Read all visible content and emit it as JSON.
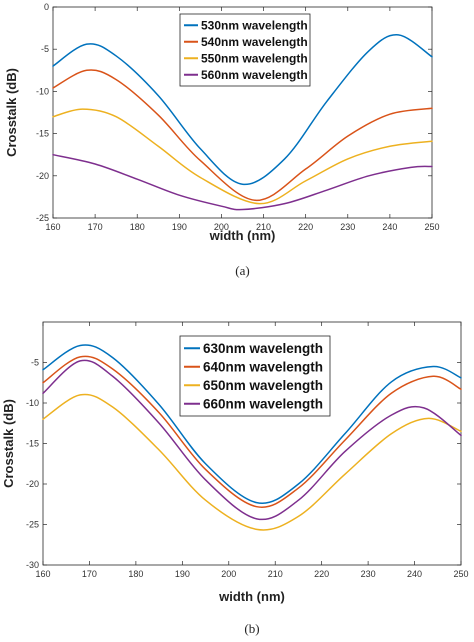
{
  "chart_data": [
    {
      "type": "line",
      "xlabel": "width (nm)",
      "ylabel": "Crosstalk (dB)",
      "xlim": [
        160,
        250
      ],
      "ylim": [
        -25,
        0
      ],
      "xticks": [
        160,
        170,
        180,
        190,
        200,
        210,
        220,
        230,
        240,
        250
      ],
      "yticks": [
        0,
        -5,
        -10,
        -15,
        -20,
        -25
      ],
      "grid": false,
      "legend": "top-center",
      "caption": "(a)",
      "series": [
        {
          "name": "530nm wavelength",
          "color": "#0072BD",
          "x": [
            160,
            168,
            175,
            185,
            195,
            205,
            215,
            225,
            235,
            242,
            250
          ],
          "y": [
            -7.0,
            -4.4,
            -5.8,
            -10.5,
            -16.8,
            -21.0,
            -18.0,
            -11.2,
            -5.2,
            -3.3,
            -5.9
          ]
        },
        {
          "name": "540nm wavelength",
          "color": "#D95319",
          "x": [
            160,
            168,
            175,
            185,
            195,
            208,
            220,
            230,
            240,
            250
          ],
          "y": [
            -9.6,
            -7.5,
            -8.6,
            -12.8,
            -18.2,
            -22.9,
            -19.2,
            -15.3,
            -12.7,
            -12.0
          ]
        },
        {
          "name": "550nm wavelength",
          "color": "#EDB120",
          "x": [
            160,
            167,
            175,
            185,
            195,
            209,
            220,
            230,
            240,
            250
          ],
          "y": [
            -13.0,
            -12.1,
            -13.0,
            -16.5,
            -20.2,
            -23.3,
            -20.6,
            -18.0,
            -16.5,
            -15.9
          ]
        },
        {
          "name": "560nm wavelength",
          "color": "#7E2F8E",
          "x": [
            160,
            170,
            180,
            190,
            200,
            205,
            215,
            225,
            235,
            245,
            250
          ],
          "y": [
            -17.5,
            -18.6,
            -20.4,
            -22.3,
            -23.6,
            -24.0,
            -23.3,
            -21.7,
            -20.0,
            -19.0,
            -18.9
          ]
        }
      ]
    },
    {
      "type": "line",
      "xlabel": "width (nm)",
      "ylabel": "Crosstalk (dB)",
      "xlim": [
        160,
        250
      ],
      "ylim": [
        -30,
        0
      ],
      "xticks": [
        160,
        170,
        180,
        190,
        200,
        210,
        220,
        230,
        240,
        250
      ],
      "yticks": [
        -5,
        -10,
        -15,
        -20,
        -25,
        -30
      ],
      "grid": false,
      "legend": "top-center",
      "caption": "(b)",
      "series": [
        {
          "name": "630nm wavelength",
          "color": "#0072BD",
          "x": [
            160,
            168,
            175,
            185,
            195,
            206,
            215,
            225,
            235,
            244,
            250
          ],
          "y": [
            -5.9,
            -2.9,
            -4.4,
            -10.2,
            -17.5,
            -22.3,
            -20.0,
            -13.8,
            -7.4,
            -5.5,
            -6.9
          ]
        },
        {
          "name": "640nm wavelength",
          "color": "#D95319",
          "x": [
            160,
            168,
            175,
            185,
            195,
            206,
            215,
            225,
            235,
            244,
            250
          ],
          "y": [
            -7.5,
            -4.3,
            -5.8,
            -11.2,
            -18.2,
            -22.8,
            -20.5,
            -14.6,
            -8.8,
            -6.7,
            -8.3
          ]
        },
        {
          "name": "650nm wavelength",
          "color": "#EDB120",
          "x": [
            160,
            168,
            175,
            185,
            195,
            206,
            215,
            225,
            235,
            243,
            250
          ],
          "y": [
            -12.0,
            -9.0,
            -10.5,
            -15.8,
            -22.0,
            -25.6,
            -24.0,
            -18.8,
            -13.8,
            -11.9,
            -13.5
          ]
        },
        {
          "name": "660nm wavelength",
          "color": "#7E2F8E",
          "x": [
            160,
            168,
            175,
            185,
            195,
            206,
            215,
            225,
            235,
            242,
            250
          ],
          "y": [
            -8.8,
            -4.8,
            -6.7,
            -12.5,
            -19.5,
            -24.3,
            -22.0,
            -16.0,
            -11.5,
            -10.6,
            -14.0
          ]
        }
      ]
    }
  ]
}
